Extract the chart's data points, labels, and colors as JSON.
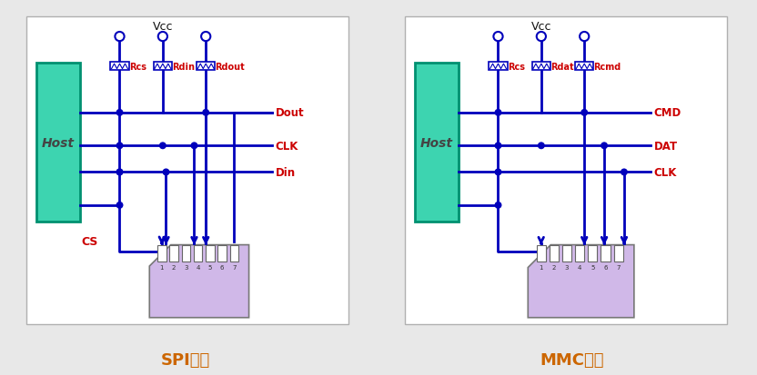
{
  "bg_color": "#e8e8e8",
  "panel_bg": "#ffffff",
  "line_color": "#0000bb",
  "host_fill": "#3dd4b0",
  "host_border": "#009070",
  "card_fill": "#d0b8e8",
  "card_fill2": "#c0a8dc",
  "card_border": "#888888",
  "label_color": "#cc0000",
  "title_color": "#cc6600",
  "spi_title": "SPI模式",
  "mmc_title": "MMC模式",
  "vcc_label": "Vcc",
  "spi_r_labels": [
    "Rcs",
    "Rdin",
    "Rdout"
  ],
  "mmc_r_labels": [
    "Rcs",
    "Rdat",
    "Rcmd"
  ],
  "spi_sig_labels": [
    "Dout",
    "CLK",
    "Din"
  ],
  "spi_cs_label": "CS",
  "mmc_sig_labels": [
    "CMD",
    "DAT",
    "CLK"
  ]
}
